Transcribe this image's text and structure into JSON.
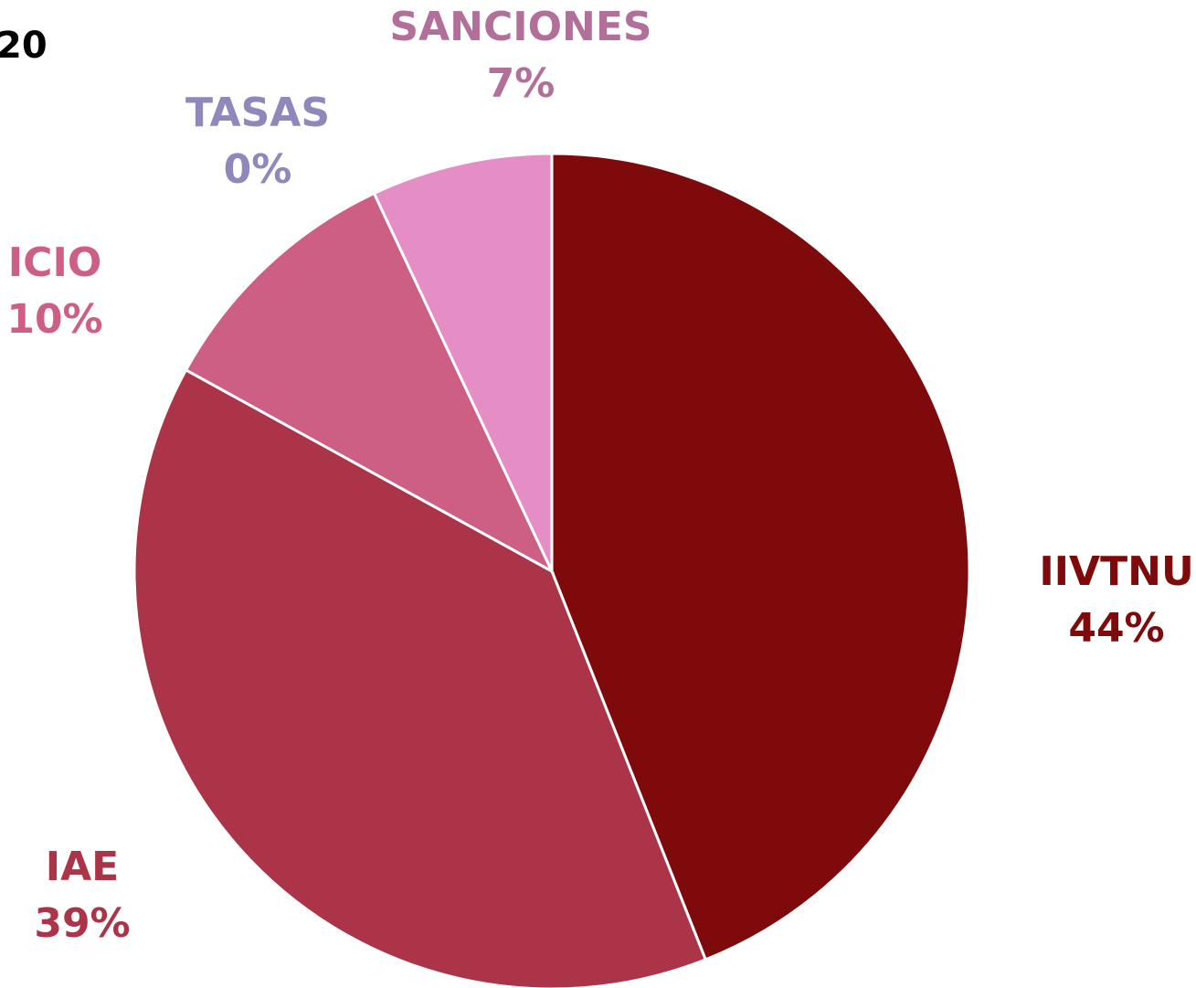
{
  "chart_data": {
    "type": "pie",
    "title_fragment": "20",
    "slices": [
      {
        "label": "IIVTNU",
        "pct_label": "44%",
        "value": 44,
        "color": "#7f0a0b"
      },
      {
        "label": "IAE",
        "pct_label": "39%",
        "value": 39,
        "color": "#ab3449"
      },
      {
        "label": "ICIO",
        "pct_label": "10%",
        "value": 10,
        "color": "#cd5f84"
      },
      {
        "label": "TASAS",
        "pct_label": "0%",
        "value": 0,
        "color": "#8e88bb"
      },
      {
        "label": "SANCIONES",
        "pct_label": "7%",
        "value": 7,
        "color": "#e58ec5"
      }
    ],
    "label_colors": {
      "IIVTNU": "#7f0a0b",
      "IAE": "#ab3449",
      "ICIO": "#cd5f84",
      "TASAS": "#8e88bb",
      "SANCIONES": "#b26f99"
    },
    "start": "12 o'clock",
    "direction": "clockwise",
    "legend": "none"
  }
}
